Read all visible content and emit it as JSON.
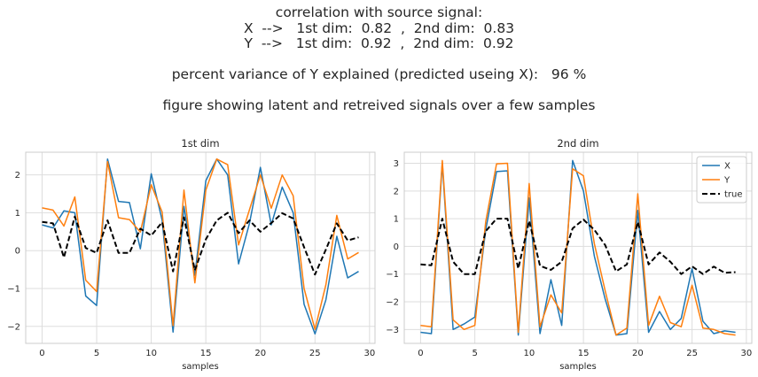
{
  "suptitle": {
    "line1": "correlation with source signal:",
    "line2": "X  -->   1st dim:  0.82  ,  2nd dim:  0.83",
    "line3": "Y  -->   1st dim:  0.92  ,  2nd dim:  0.92",
    "line4": "percent variance of Y explained (predicted useing X):   96 %",
    "line5": "figure showing latent and retreived signals over a few samples"
  },
  "colors": {
    "X": "#1f77b4",
    "Y": "#ff7f0e",
    "true": "#000000",
    "grid": "#dddddd",
    "spine": "#cccccc"
  },
  "chart_data": [
    {
      "type": "line",
      "title": "1st dim",
      "xlabel": "samples",
      "ylabel": "",
      "xlim": [
        -1.5,
        30.5
      ],
      "ylim": [
        -2.45,
        2.6
      ],
      "xticks": [
        0,
        5,
        10,
        15,
        20,
        25,
        30
      ],
      "yticks": [
        -2,
        -1,
        0,
        1,
        2
      ],
      "grid": true,
      "legend": null,
      "x": [
        0,
        1,
        2,
        3,
        4,
        5,
        6,
        7,
        8,
        9,
        10,
        11,
        12,
        13,
        14,
        15,
        16,
        17,
        18,
        19,
        20,
        21,
        22,
        23,
        24,
        25,
        26,
        27,
        28,
        29
      ],
      "series": [
        {
          "name": "X",
          "color": "#1f77b4",
          "dash": false,
          "values": [
            0.68,
            0.6,
            1.05,
            1.0,
            -1.2,
            -1.45,
            2.42,
            1.3,
            1.27,
            0.05,
            2.03,
            0.8,
            -2.15,
            1.17,
            -0.65,
            1.85,
            2.42,
            2.0,
            -0.35,
            0.72,
            2.2,
            0.68,
            1.68,
            1.0,
            -1.42,
            -2.2,
            -1.3,
            0.38,
            -0.72,
            -0.55
          ]
        },
        {
          "name": "Y",
          "color": "#ff7f0e",
          "dash": false,
          "values": [
            1.13,
            1.07,
            0.65,
            1.42,
            -0.78,
            -1.08,
            2.35,
            0.87,
            0.82,
            0.49,
            1.74,
            1.02,
            -1.98,
            1.6,
            -0.85,
            1.6,
            2.42,
            2.27,
            0.15,
            1.08,
            2.0,
            1.12,
            2.0,
            1.45,
            -1.0,
            -2.08,
            -0.9,
            0.93,
            -0.22,
            -0.05
          ]
        },
        {
          "name": "true",
          "color": "#000000",
          "dash": true,
          "values": [
            0.76,
            0.72,
            -0.18,
            0.9,
            0.07,
            -0.06,
            0.8,
            -0.06,
            -0.06,
            0.58,
            0.4,
            0.75,
            -0.55,
            0.88,
            -0.52,
            0.3,
            0.8,
            1.0,
            0.46,
            0.8,
            0.5,
            0.73,
            0.99,
            0.85,
            0.09,
            -0.63,
            0.03,
            0.72,
            0.27,
            0.35
          ]
        }
      ]
    },
    {
      "type": "line",
      "title": "2nd dim",
      "xlabel": "samples",
      "ylabel": "",
      "xlim": [
        -1.5,
        30.5
      ],
      "ylim": [
        -3.5,
        3.4
      ],
      "xticks": [
        0,
        5,
        10,
        15,
        20,
        25,
        30
      ],
      "yticks": [
        -3,
        -2,
        -1,
        0,
        1,
        2,
        3
      ],
      "grid": true,
      "legend": "top-right",
      "x": [
        0,
        1,
        2,
        3,
        4,
        5,
        6,
        7,
        8,
        9,
        10,
        11,
        12,
        13,
        14,
        15,
        16,
        17,
        18,
        19,
        20,
        21,
        22,
        23,
        24,
        25,
        26,
        27,
        28,
        29
      ],
      "series": [
        {
          "name": "X",
          "color": "#1f77b4",
          "dash": false,
          "values": [
            -3.1,
            -3.15,
            3.0,
            -3.0,
            -2.8,
            -2.55,
            0.6,
            2.7,
            2.73,
            -3.2,
            1.75,
            -3.15,
            -1.2,
            -2.85,
            3.1,
            2.0,
            -0.35,
            -1.9,
            -3.2,
            -3.15,
            1.3,
            -3.1,
            -2.35,
            -3.0,
            -2.6,
            -0.8,
            -2.7,
            -3.15,
            -3.05,
            -3.1
          ]
        },
        {
          "name": "Y",
          "color": "#ff7f0e",
          "dash": false,
          "values": [
            -2.85,
            -2.9,
            3.1,
            -2.65,
            -3.0,
            -2.85,
            0.9,
            2.98,
            3.0,
            -3.1,
            2.27,
            -2.9,
            -1.75,
            -2.4,
            2.8,
            2.55,
            0.1,
            -1.6,
            -3.2,
            -2.95,
            1.9,
            -2.85,
            -1.8,
            -2.75,
            -2.9,
            -1.4,
            -2.95,
            -3.0,
            -3.15,
            -3.2
          ]
        },
        {
          "name": "true",
          "color": "#000000",
          "dash": true,
          "values": [
            -0.65,
            -0.68,
            1.0,
            -0.55,
            -1.0,
            -1.0,
            0.55,
            1.0,
            1.0,
            -0.8,
            0.92,
            -0.7,
            -0.85,
            -0.55,
            0.65,
            0.97,
            0.6,
            0.05,
            -0.9,
            -0.65,
            0.88,
            -0.65,
            -0.22,
            -0.55,
            -1.0,
            -0.72,
            -1.0,
            -0.73,
            -0.95,
            -0.93
          ]
        }
      ]
    }
  ]
}
